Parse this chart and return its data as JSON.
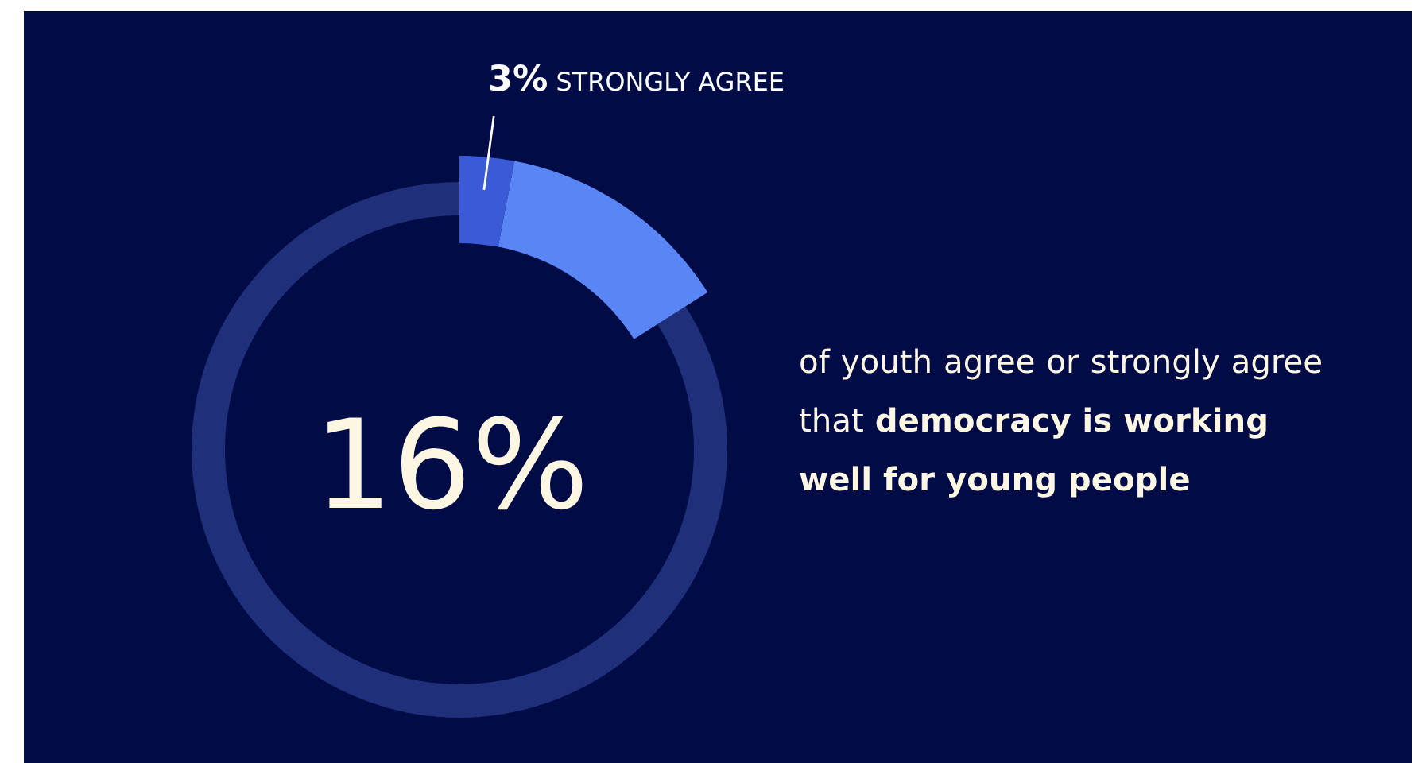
{
  "chart_data": {
    "type": "donut",
    "categories": [
      "STRONGLY AGREE",
      null,
      null
    ],
    "values": [
      3,
      13,
      84
    ],
    "colors": [
      "#3a5ad6",
      "#5a85f5",
      "#1f2f7a"
    ],
    "value_labels": [
      "3%",
      null,
      null
    ],
    "annotations": [
      "16%",
      "of youth agree or strongly agree that",
      "democracy is working well for young people"
    ]
  }
}
